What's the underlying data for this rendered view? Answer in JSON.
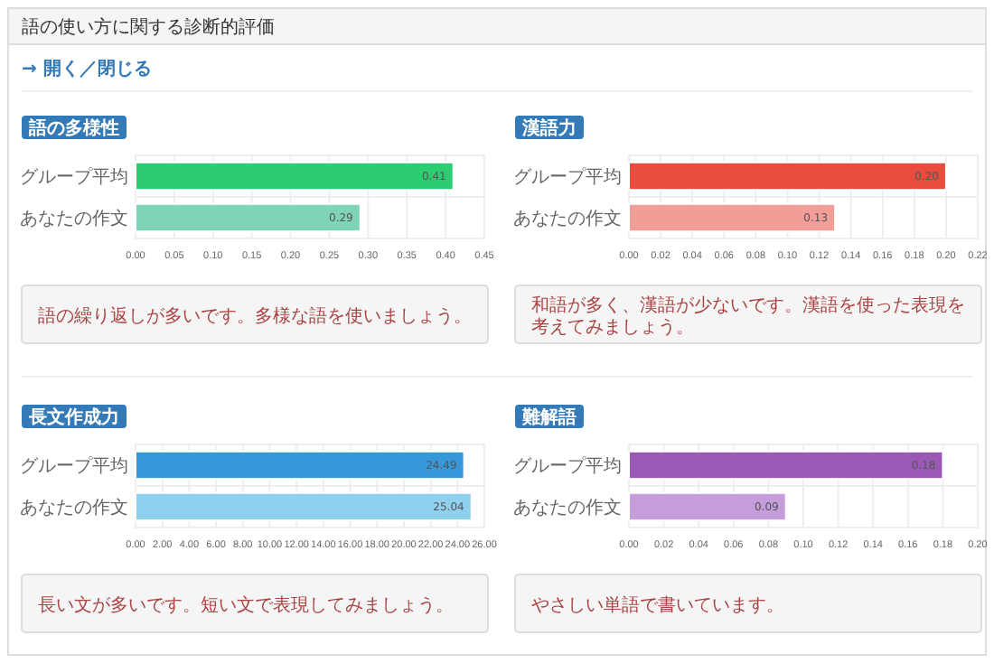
{
  "chart_data": [
    {
      "type": "bar",
      "orientation": "horizontal",
      "title": "語の多様性",
      "categories": [
        "グループ平均",
        "あなたの作文"
      ],
      "values": [
        0.41,
        0.29
      ],
      "value_labels": [
        "0.41",
        "0.29"
      ],
      "colors": [
        "#2ecc71",
        "#7ed3b8"
      ],
      "grid": true,
      "xlim": [
        0,
        0.45
      ],
      "xticks": [
        {
          "value": 0,
          "label": "0.00"
        },
        {
          "value": 0.05,
          "label": "0.05"
        },
        {
          "value": 0.1,
          "label": "0.10"
        },
        {
          "value": 0.15,
          "label": "0.15"
        },
        {
          "value": 0.2,
          "label": "0.20"
        },
        {
          "value": 0.25,
          "label": "0.25"
        },
        {
          "value": 0.3,
          "label": "0.30"
        },
        {
          "value": 0.35,
          "label": "0.35"
        },
        {
          "value": 0.4,
          "label": "0.40"
        },
        {
          "value": 0.45,
          "label": "0.45"
        }
      ],
      "annotations": [
        "語の使い方に関する診断的評価",
        "→ 開く／閉じる",
        "語の繰り返しが多いです。多様な語を使いましょう。"
      ]
    },
    {
      "type": "bar",
      "orientation": "horizontal",
      "title": "漢語力",
      "categories": [
        "グループ平均",
        "あなたの作文"
      ],
      "values": [
        0.2,
        0.13
      ],
      "value_labels": [
        "0.20",
        "0.13"
      ],
      "colors": [
        "#e74c3c",
        "#f29e98"
      ],
      "grid": true,
      "xlim": [
        0,
        0.22
      ],
      "xticks": [
        {
          "value": 0,
          "label": "0.00"
        },
        {
          "value": 0.02,
          "label": "0.02"
        },
        {
          "value": 0.04,
          "label": "0.04"
        },
        {
          "value": 0.06,
          "label": "0.06"
        },
        {
          "value": 0.08,
          "label": "0.08"
        },
        {
          "value": 0.1,
          "label": "0.10"
        },
        {
          "value": 0.12,
          "label": "0.12"
        },
        {
          "value": 0.14,
          "label": "0.14"
        },
        {
          "value": 0.16,
          "label": "0.16"
        },
        {
          "value": 0.18,
          "label": "0.18"
        },
        {
          "value": 0.2,
          "label": "0.20"
        },
        {
          "value": 0.22,
          "label": "0.22"
        }
      ],
      "annotations": [
        "和語が多く、漢語が少ないです。漢語を使った表現を考えてみましょう。"
      ]
    },
    {
      "type": "bar",
      "orientation": "horizontal",
      "title": "長文作成力",
      "categories": [
        "グループ平均",
        "あなたの作文"
      ],
      "values": [
        24.49,
        25.04
      ],
      "value_labels": [
        "24.49",
        "25.04"
      ],
      "colors": [
        "#3498db",
        "#8fd0ee"
      ],
      "grid": true,
      "xlim": [
        0,
        26
      ],
      "xticks": [
        {
          "value": 0,
          "label": "0.00"
        },
        {
          "value": 2,
          "label": "2.00"
        },
        {
          "value": 4,
          "label": "4.00"
        },
        {
          "value": 6,
          "label": "6.00"
        },
        {
          "value": 8,
          "label": "8.00"
        },
        {
          "value": 10,
          "label": "10.00"
        },
        {
          "value": 12,
          "label": "12.00"
        },
        {
          "value": 14,
          "label": "14.00"
        },
        {
          "value": 16,
          "label": "16.00"
        },
        {
          "value": 18,
          "label": "18.00"
        },
        {
          "value": 20,
          "label": "20.00"
        },
        {
          "value": 22,
          "label": "22.00"
        },
        {
          "value": 24,
          "label": "24.00"
        },
        {
          "value": 26,
          "label": "26.00"
        }
      ],
      "annotations": [
        "長い文が多いです。短い文で表現してみましょう。"
      ]
    },
    {
      "type": "bar",
      "orientation": "horizontal",
      "title": "難解語",
      "categories": [
        "グループ平均",
        "あなたの作文"
      ],
      "values": [
        0.18,
        0.09
      ],
      "value_labels": [
        "0.18",
        "0.09"
      ],
      "colors": [
        "#9b59b6",
        "#c59ddb"
      ],
      "grid": true,
      "xlim": [
        0,
        0.2
      ],
      "xticks": [
        {
          "value": 0,
          "label": "0.00"
        },
        {
          "value": 0.02,
          "label": "0.02"
        },
        {
          "value": 0.04,
          "label": "0.04"
        },
        {
          "value": 0.06,
          "label": "0.06"
        },
        {
          "value": 0.08,
          "label": "0.08"
        },
        {
          "value": 0.1,
          "label": "0.10"
        },
        {
          "value": 0.12,
          "label": "0.12"
        },
        {
          "value": 0.14,
          "label": "0.14"
        },
        {
          "value": 0.16,
          "label": "0.16"
        },
        {
          "value": 0.18,
          "label": "0.18"
        },
        {
          "value": 0.2,
          "label": "0.20"
        }
      ],
      "annotations": [
        "やさしい単語で書いています。"
      ]
    }
  ]
}
